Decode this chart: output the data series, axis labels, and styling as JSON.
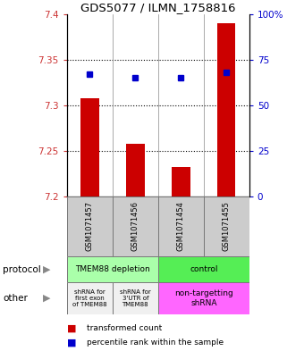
{
  "title": "GDS5077 / ILMN_1758816",
  "samples": [
    "GSM1071457",
    "GSM1071456",
    "GSM1071454",
    "GSM1071455"
  ],
  "bar_values": [
    7.308,
    7.258,
    7.232,
    7.39
  ],
  "bar_base": 7.2,
  "blue_values": [
    67,
    65,
    65,
    68
  ],
  "ylim_left": [
    7.2,
    7.4
  ],
  "ylim_right": [
    0,
    100
  ],
  "yticks_left": [
    7.2,
    7.25,
    7.3,
    7.35,
    7.4
  ],
  "yticks_right": [
    0,
    25,
    50,
    75,
    100
  ],
  "ytick_labels_right": [
    "0",
    "25",
    "50",
    "75",
    "100%"
  ],
  "bar_color": "#cc0000",
  "blue_color": "#0000cc",
  "protocol_labels": [
    "TMEM88 depletion",
    "control"
  ],
  "protocol_colors": [
    "#aaffaa",
    "#55ee55"
  ],
  "other_labels": [
    "shRNA for\nfirst exon\nof TMEM88",
    "shRNA for\n3'UTR of\nTMEM88",
    "non-targetting\nshRNA"
  ],
  "other_colors": [
    "#f0f0f0",
    "#f0f0f0",
    "#ff66ff"
  ],
  "legend_red": "transformed count",
  "legend_blue": "percentile rank within the sample",
  "protocol_row_label": "protocol",
  "other_row_label": "other",
  "sample_bg_color": "#cccccc",
  "bar_width": 0.4
}
